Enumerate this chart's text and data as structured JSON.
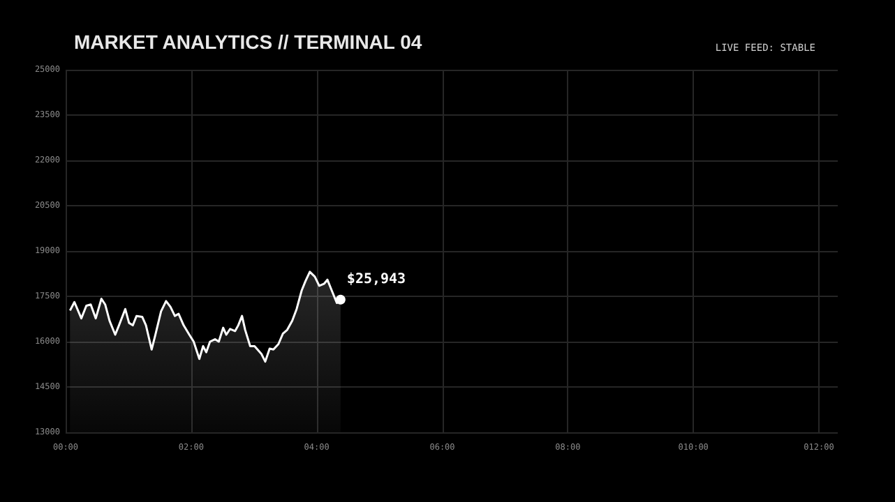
{
  "chart_data": {
    "type": "area",
    "title": "MARKET ANALYTICS // TERMINAL 04",
    "subtitle": "LIVE FEED: STABLE",
    "x": [
      0.07,
      0.14,
      0.25,
      0.33,
      0.4,
      0.48,
      0.57,
      0.63,
      0.7,
      0.79,
      0.85,
      0.95,
      1.01,
      1.07,
      1.13,
      1.22,
      1.28,
      1.37,
      1.43,
      1.52,
      1.6,
      1.67,
      1.74,
      1.8,
      1.88,
      1.97,
      2.04,
      2.13,
      2.19,
      2.24,
      2.3,
      2.38,
      2.44,
      2.51,
      2.56,
      2.62,
      2.7,
      2.75,
      2.81,
      2.86,
      2.94,
      3.01,
      3.12,
      3.18,
      3.25,
      3.31,
      3.39,
      3.46,
      3.53,
      3.61,
      3.68,
      3.76,
      3.82,
      3.89,
      3.97,
      4.04,
      4.12,
      4.17,
      4.24,
      4.32,
      4.38
    ],
    "series": [
      {
        "color": "#ffffff",
        "values": [
          17030,
          17310,
          16770,
          17190,
          17230,
          16770,
          17420,
          17230,
          16690,
          16230,
          16540,
          17080,
          16620,
          16540,
          16850,
          16820,
          16540,
          15740,
          16230,
          17000,
          17340,
          17150,
          16850,
          16920,
          16540,
          16230,
          16000,
          15430,
          15850,
          15650,
          16000,
          16080,
          16000,
          16460,
          16230,
          16420,
          16350,
          16540,
          16850,
          16390,
          15850,
          15850,
          15590,
          15340,
          15770,
          15740,
          15920,
          16260,
          16390,
          16690,
          17080,
          17690,
          18000,
          18310,
          18150,
          17850,
          17920,
          18050,
          17690,
          17280,
          17390
        ]
      }
    ],
    "annotations": [
      {
        "text": "$25,943",
        "x": 4.38,
        "y": 17390
      }
    ],
    "xlim": [
      0,
      12.3
    ],
    "xticks": [
      {
        "value": 0,
        "label": "00:00"
      },
      {
        "value": 2,
        "label": "02:00"
      },
      {
        "value": 4,
        "label": "04:00"
      },
      {
        "value": 6,
        "label": "06:00"
      },
      {
        "value": 8,
        "label": "08:00"
      },
      {
        "value": 10,
        "label": "010:00"
      },
      {
        "value": 12,
        "label": "012:00"
      }
    ],
    "ylim": [
      13000,
      25000
    ],
    "yticks": [
      13000,
      14500,
      16000,
      17500,
      19000,
      20500,
      22000,
      23500,
      25000
    ],
    "grid": true,
    "marker": "none",
    "line_style": "solid"
  }
}
